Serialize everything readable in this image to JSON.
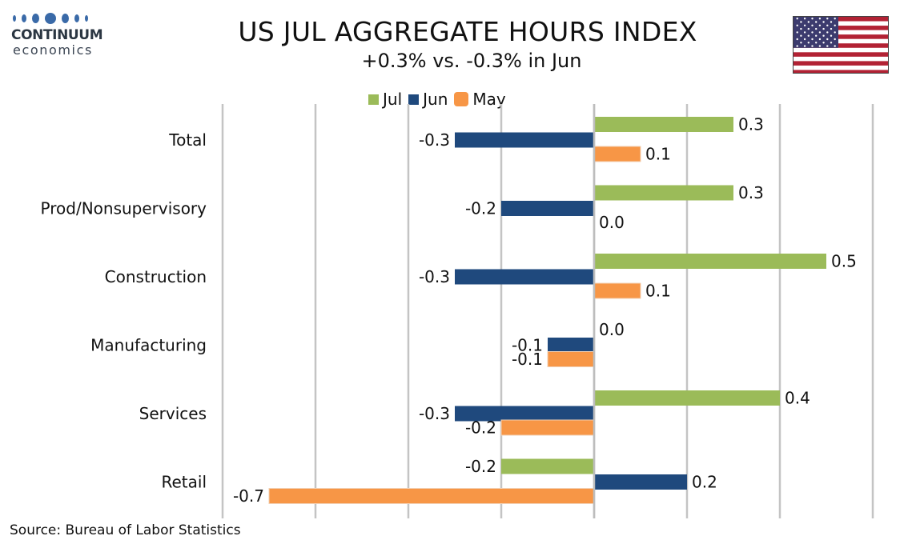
{
  "header": {
    "logo_word": "CONTINUUM",
    "logo_sub": "economics",
    "title": "US JUL AGGREGATE HOURS INDEX",
    "subtitle": "+0.3% vs. -0.3% in Jun",
    "flag_icon": "us-flag-icon"
  },
  "footer": {
    "source": "Source: Bureau of Labor Statistics"
  },
  "chart_data": {
    "type": "bar",
    "orientation": "horizontal",
    "categories": [
      "Total",
      "Prod/Nonsupervisory",
      "Construction",
      "Manufacturing",
      "Services",
      "Retail"
    ],
    "series": [
      {
        "name": "Jul",
        "color": "#9bbb59",
        "values": [
          0.3,
          0.3,
          0.5,
          0.0,
          0.4,
          -0.2
        ]
      },
      {
        "name": "Jun",
        "color": "#1f497d",
        "values": [
          -0.3,
          -0.2,
          -0.3,
          -0.1,
          -0.3,
          0.2
        ]
      },
      {
        "name": "May",
        "color": "#f79646",
        "values": [
          0.1,
          0.0,
          0.1,
          -0.1,
          -0.2,
          -0.7
        ]
      }
    ],
    "xlim": [
      -0.8,
      0.6
    ],
    "grid": true,
    "legend": "top",
    "data_labels": true
  }
}
